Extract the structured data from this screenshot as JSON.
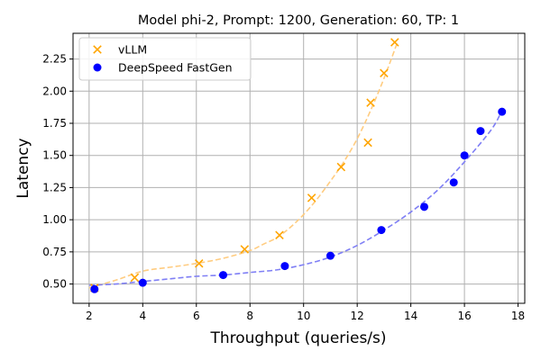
{
  "chart_data": {
    "type": "scatter",
    "title": "Model phi-2, Prompt: 1200, Generation: 60, TP: 1",
    "xlabel": "Throughput (queries/s)",
    "ylabel": "Latency",
    "xlim": [
      1.4,
      18.25
    ],
    "ylim": [
      0.35,
      2.45
    ],
    "xticks": [
      2,
      4,
      6,
      8,
      10,
      12,
      14,
      16,
      18
    ],
    "yticks": [
      0.5,
      0.75,
      1.0,
      1.25,
      1.5,
      1.75,
      2.0,
      2.25
    ],
    "xtick_labels": [
      "2",
      "4",
      "6",
      "8",
      "10",
      "12",
      "14",
      "16",
      "18"
    ],
    "ytick_labels": [
      "0.50",
      "0.75",
      "1.00",
      "1.25",
      "1.50",
      "1.75",
      "2.00",
      "2.25"
    ],
    "grid": true,
    "legend_position": "top-left",
    "series": [
      {
        "name": "vLLM",
        "marker": "x",
        "color": "#ffa500",
        "fit_color": "#ffcc80",
        "x": [
          2.2,
          3.7,
          6.1,
          7.8,
          9.1,
          10.3,
          11.4,
          12.4,
          12.5,
          13.0,
          13.4
        ],
        "y": [
          0.47,
          0.55,
          0.66,
          0.77,
          0.88,
          1.17,
          1.41,
          1.6,
          1.91,
          2.14,
          2.38
        ],
        "fit_x": [
          2.0,
          3.0,
          4.0,
          5.0,
          6.0,
          7.0,
          8.0,
          8.5,
          9.0,
          9.5,
          10.0,
          10.5,
          11.0,
          11.5,
          12.0,
          12.5,
          13.0,
          13.5
        ],
        "fit_y": [
          0.47,
          0.53,
          0.6,
          0.63,
          0.66,
          0.7,
          0.76,
          0.81,
          0.86,
          0.94,
          1.04,
          1.16,
          1.3,
          1.45,
          1.63,
          1.85,
          2.1,
          2.38
        ]
      },
      {
        "name": "DeepSpeed FastGen",
        "marker": "circle",
        "color": "#0000ff",
        "fit_color": "#7f7ff5",
        "x": [
          2.2,
          4.0,
          7.0,
          9.3,
          11.0,
          12.9,
          14.5,
          15.6,
          16.0,
          16.6,
          17.4
        ],
        "y": [
          0.46,
          0.51,
          0.57,
          0.64,
          0.72,
          0.92,
          1.1,
          1.29,
          1.5,
          1.69,
          1.84
        ],
        "fit_x": [
          2.0,
          3.0,
          4.0,
          5.0,
          6.0,
          7.0,
          8.0,
          9.0,
          10.0,
          11.0,
          12.0,
          13.0,
          14.0,
          15.0,
          16.0,
          17.0,
          17.4
        ],
        "fit_y": [
          0.49,
          0.5,
          0.52,
          0.54,
          0.56,
          0.57,
          0.59,
          0.61,
          0.65,
          0.71,
          0.8,
          0.92,
          1.06,
          1.23,
          1.45,
          1.7,
          1.85
        ]
      }
    ]
  }
}
